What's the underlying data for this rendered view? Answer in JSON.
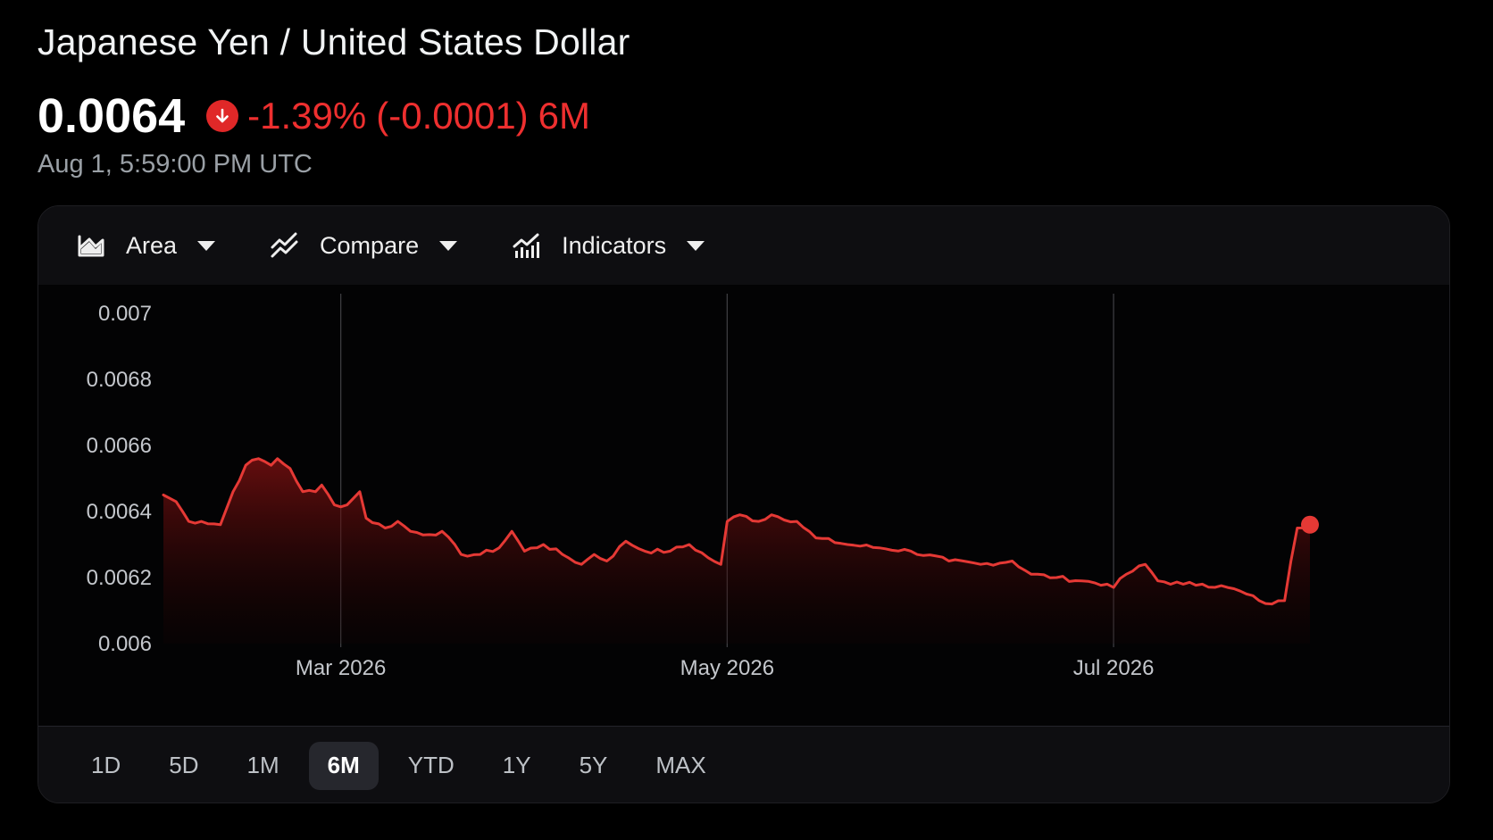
{
  "header": {
    "title": "Japanese Yen / United States Dollar",
    "price": "0.0064",
    "change_percent": "-1.39%",
    "change_value": "(-0.0001)",
    "change_period": "6M",
    "direction_icon": "arrow-down-icon",
    "timestamp": "Aug 1, 5:59:00 PM UTC"
  },
  "toolbar": {
    "chart_type": {
      "label": "Area",
      "icon": "area-chart-icon"
    },
    "compare": {
      "label": "Compare",
      "icon": "compare-icon"
    },
    "indicators": {
      "label": "Indicators",
      "icon": "indicators-icon"
    }
  },
  "range_selector": {
    "options": [
      "1D",
      "5D",
      "1M",
      "6M",
      "YTD",
      "1Y",
      "5Y",
      "MAX"
    ],
    "selected": "6M"
  },
  "colors": {
    "accent_red": "#e53935",
    "background": "#000000",
    "gridline": "#3c3c40",
    "text_primary": "#ffffff",
    "text_secondary": "#9aa0a6"
  },
  "chart_data": {
    "type": "area",
    "y_tick_labels": [
      "0.007",
      "0.0068",
      "0.0066",
      "0.0064",
      "0.0062",
      "0.006"
    ],
    "y_ticks": [
      0.007,
      0.0068,
      0.0066,
      0.0064,
      0.0062,
      0.006
    ],
    "ylim": [
      0.006,
      0.007
    ],
    "x_tick_labels": [
      "Mar 2026",
      "May 2026",
      "Jul 2026"
    ],
    "x_ticks": [
      "2026-03-01",
      "2026-05-01",
      "2026-07-01"
    ],
    "xlim": [
      "2026-02-01",
      "2026-08-01"
    ],
    "vertical_grid": true,
    "horizontal_grid": false,
    "last_point_marker": true,
    "points": [
      [
        "2026-02-01",
        0.00645
      ],
      [
        "2026-02-03",
        0.00643
      ],
      [
        "2026-02-05",
        0.00637
      ],
      [
        "2026-02-07",
        0.00637
      ],
      [
        "2026-02-10",
        0.00636
      ],
      [
        "2026-02-12",
        0.00646
      ],
      [
        "2026-02-14",
        0.00654
      ],
      [
        "2026-02-16",
        0.00656
      ],
      [
        "2026-02-18",
        0.00654
      ],
      [
        "2026-02-19",
        0.00656
      ],
      [
        "2026-02-21",
        0.00653
      ],
      [
        "2026-02-23",
        0.00646
      ],
      [
        "2026-02-25",
        0.00646
      ],
      [
        "2026-02-26",
        0.00648
      ],
      [
        "2026-02-28",
        0.00642
      ],
      [
        "2026-03-02",
        0.00642
      ],
      [
        "2026-03-04",
        0.00646
      ],
      [
        "2026-03-05",
        0.00638
      ],
      [
        "2026-03-08",
        0.00635
      ],
      [
        "2026-03-10",
        0.00637
      ],
      [
        "2026-03-12",
        0.00634
      ],
      [
        "2026-03-15",
        0.00633
      ],
      [
        "2026-03-17",
        0.00634
      ],
      [
        "2026-03-20",
        0.00627
      ],
      [
        "2026-03-23",
        0.00627
      ],
      [
        "2026-03-26",
        0.00629
      ],
      [
        "2026-03-28",
        0.00634
      ],
      [
        "2026-03-30",
        0.00628
      ],
      [
        "2026-04-02",
        0.0063
      ],
      [
        "2026-04-05",
        0.00627
      ],
      [
        "2026-04-08",
        0.00624
      ],
      [
        "2026-04-10",
        0.00627
      ],
      [
        "2026-04-12",
        0.00625
      ],
      [
        "2026-04-15",
        0.00631
      ],
      [
        "2026-04-18",
        0.00628
      ],
      [
        "2026-04-22",
        0.00628
      ],
      [
        "2026-04-25",
        0.0063
      ],
      [
        "2026-04-28",
        0.00626
      ],
      [
        "2026-04-30",
        0.00624
      ],
      [
        "2026-05-01",
        0.00637
      ],
      [
        "2026-05-03",
        0.00639
      ],
      [
        "2026-05-06",
        0.00637
      ],
      [
        "2026-05-08",
        0.00639
      ],
      [
        "2026-05-12",
        0.00637
      ],
      [
        "2026-05-15",
        0.00632
      ],
      [
        "2026-05-20",
        0.0063
      ],
      [
        "2026-05-25",
        0.00629
      ],
      [
        "2026-05-30",
        0.00628
      ],
      [
        "2026-06-05",
        0.00625
      ],
      [
        "2026-06-10",
        0.00624
      ],
      [
        "2026-06-15",
        0.00625
      ],
      [
        "2026-06-18",
        0.00621
      ],
      [
        "2026-06-22",
        0.0062
      ],
      [
        "2026-06-26",
        0.00619
      ],
      [
        "2026-06-30",
        0.00618
      ],
      [
        "2026-07-01",
        0.00617
      ],
      [
        "2026-07-03",
        0.00621
      ],
      [
        "2026-07-06",
        0.00624
      ],
      [
        "2026-07-08",
        0.00619
      ],
      [
        "2026-07-12",
        0.00618
      ],
      [
        "2026-07-15",
        0.00618
      ],
      [
        "2026-07-19",
        0.00617
      ],
      [
        "2026-07-22",
        0.00615
      ],
      [
        "2026-07-24",
        0.00613
      ],
      [
        "2026-07-26",
        0.00612
      ],
      [
        "2026-07-28",
        0.00613
      ],
      [
        "2026-07-29",
        0.00625
      ],
      [
        "2026-07-30",
        0.00635
      ],
      [
        "2026-08-01",
        0.00636
      ]
    ]
  }
}
